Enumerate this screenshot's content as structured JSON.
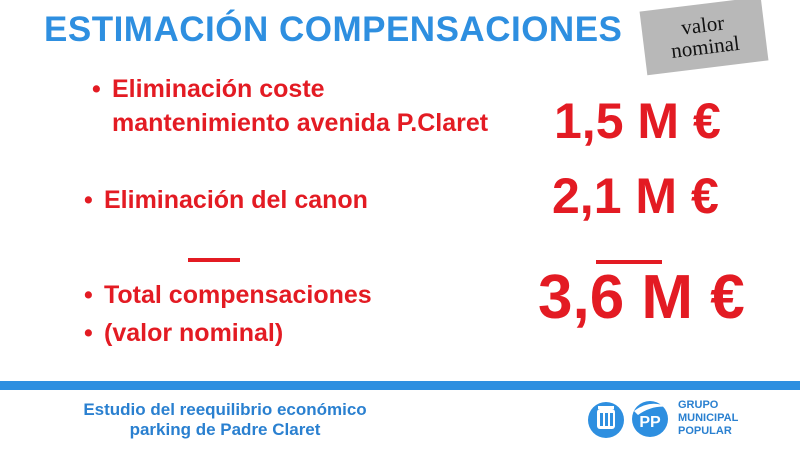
{
  "title": "ESTIMACIÓN COMPENSACIONES",
  "tag": {
    "line1": "valor",
    "line2": "nominal"
  },
  "items": [
    {
      "line1": "Eliminación coste",
      "line2": "mantenimiento avenida P.Claret",
      "amount": "1,5 M €"
    },
    {
      "line1": "Eliminación del canon",
      "amount": "2,1 M €"
    },
    {
      "line1": "Total compensaciones",
      "line2": "(valor nominal)",
      "amount": "3,6 M €"
    }
  ],
  "footer": {
    "line1": "Estudio del reequilibrio económico",
    "line2": "parking de Padre Claret"
  },
  "logo": {
    "badge": "PP",
    "line1": "GRUPO",
    "line2": "MUNICIPAL",
    "line3": "POPULAR"
  },
  "colors": {
    "title_blue": "#2e8fe0",
    "red": "#e31b23",
    "tag_gray": "#b8b8b8"
  }
}
